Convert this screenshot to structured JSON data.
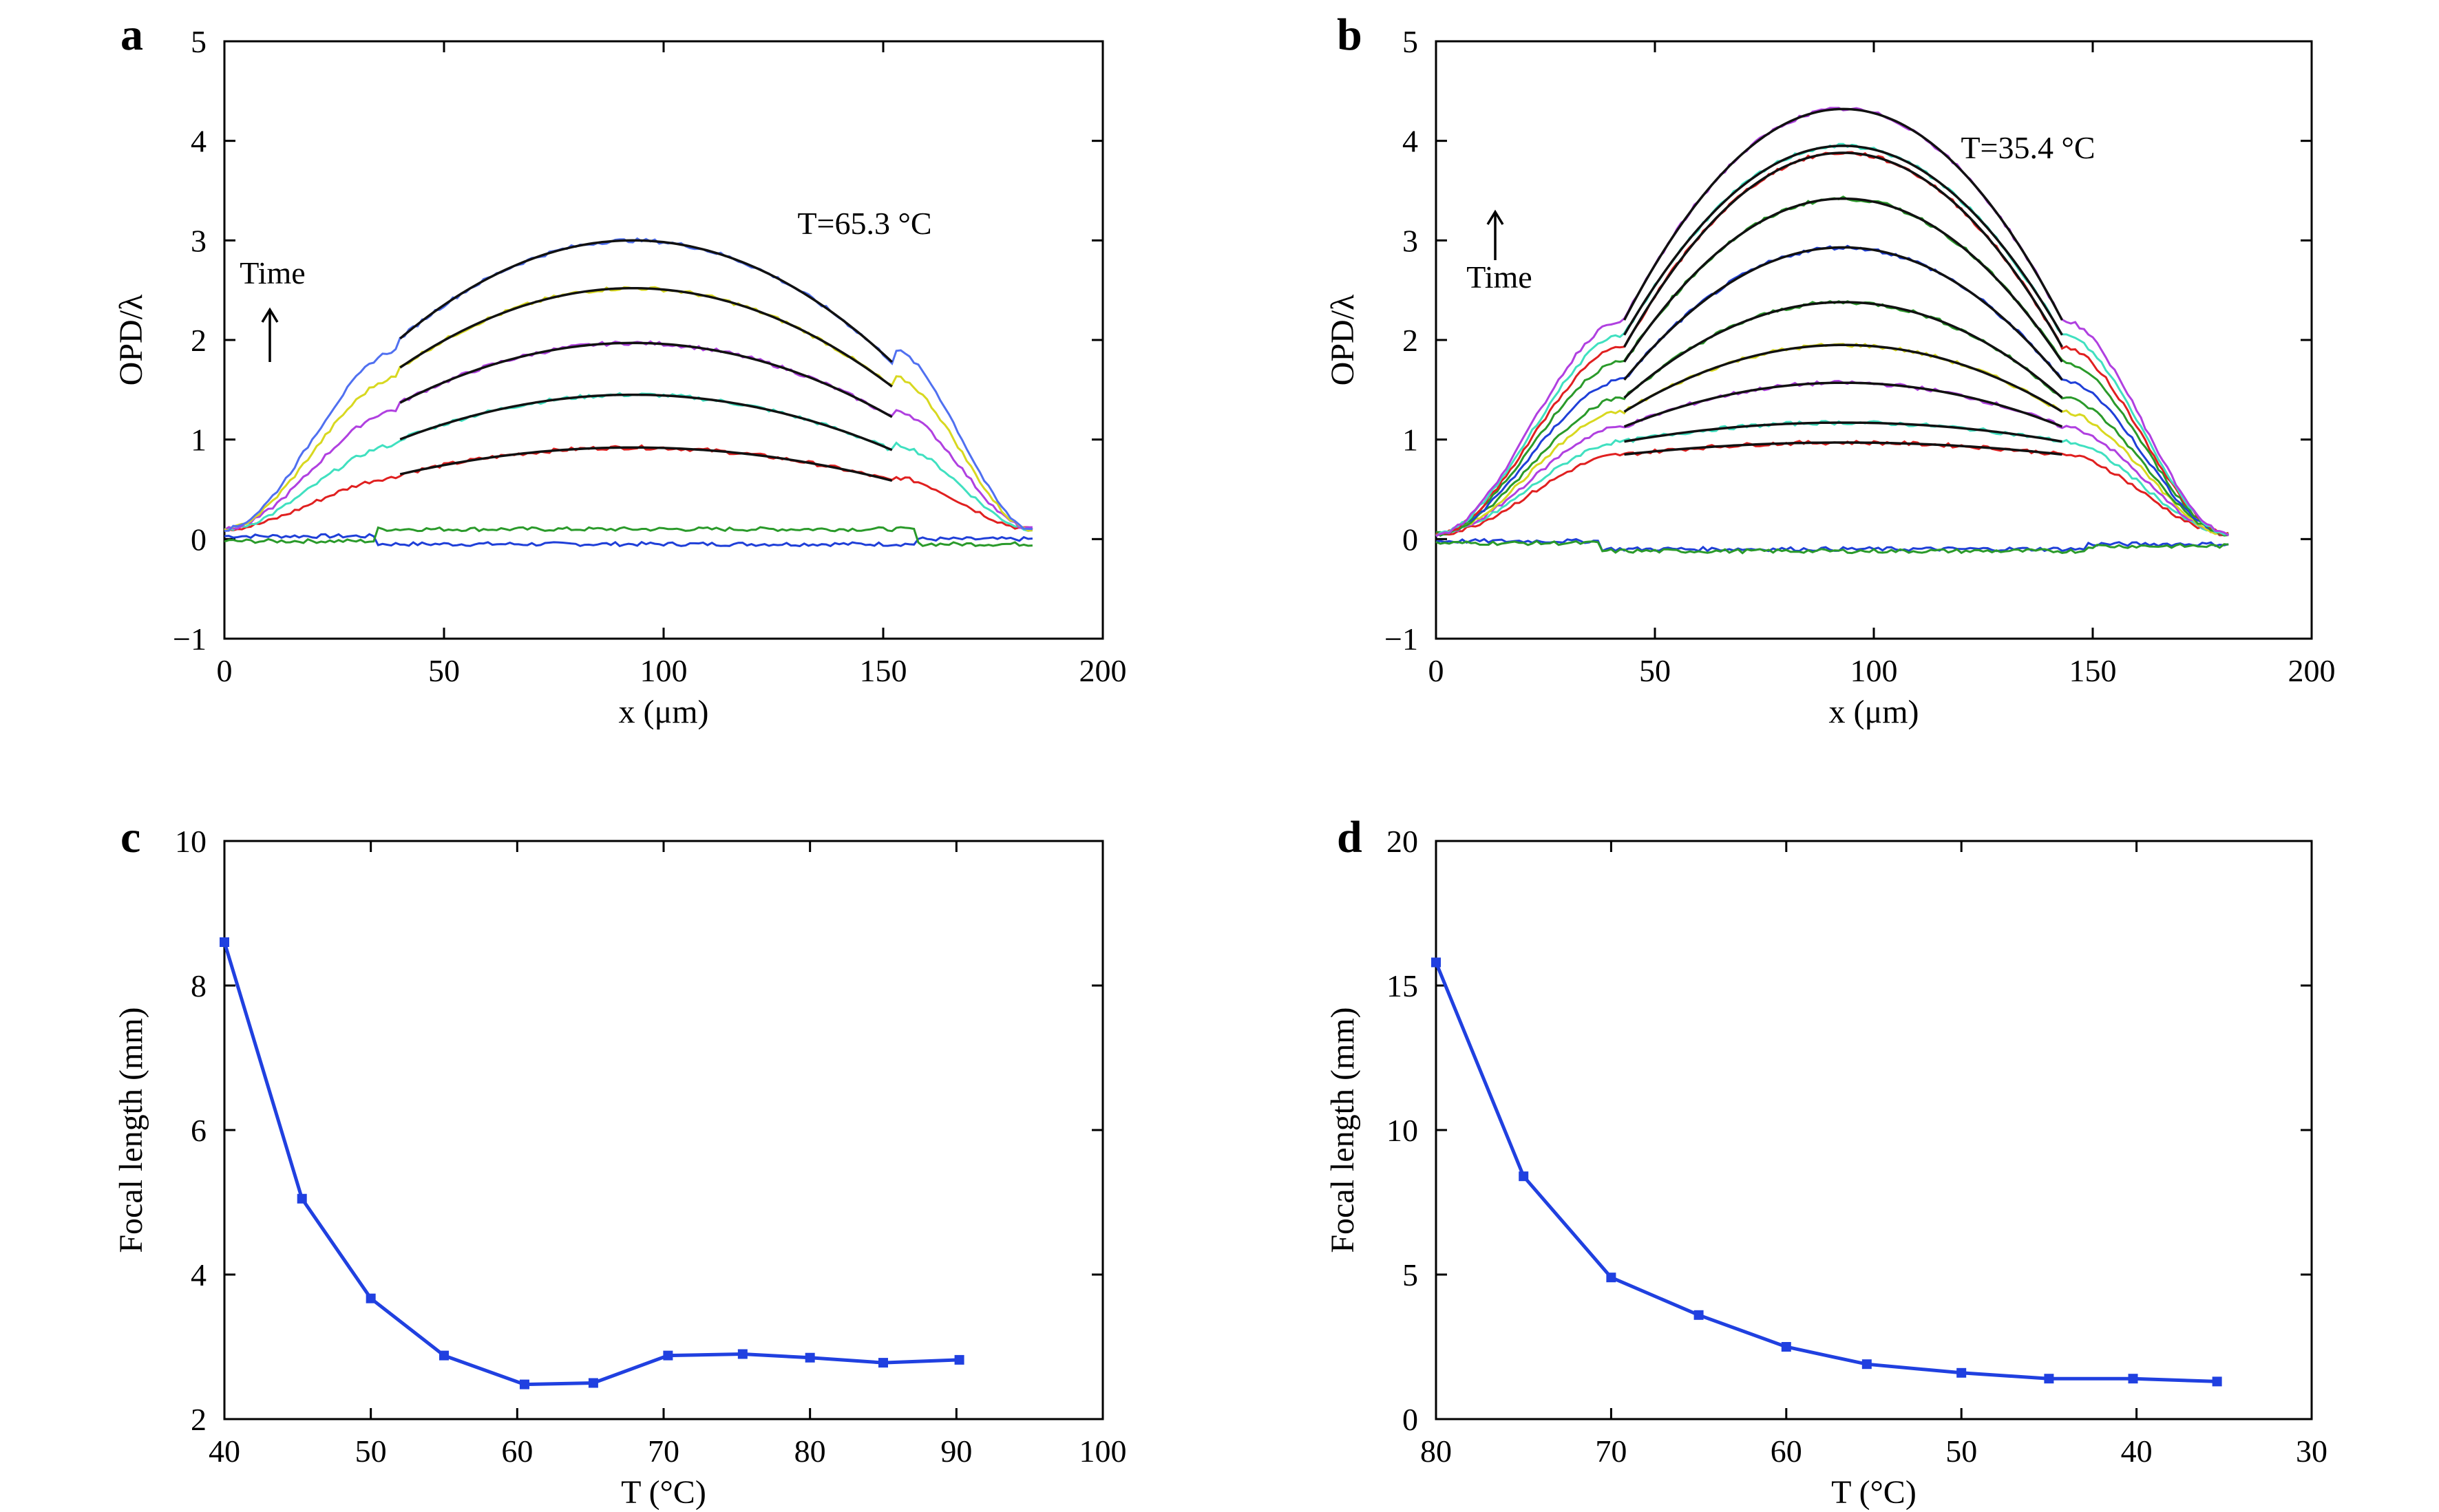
{
  "colors": {
    "blue": "#1f3fd8",
    "green": "#2a9a2a",
    "red": "#e02020",
    "cyan": "#40e0c0",
    "purple": "#b040e0",
    "yellow": "#d8d820",
    "black": "#111111",
    "lightblue": "#5070f0"
  },
  "chart_data": [
    {
      "panel": "a",
      "type": "line",
      "annotation": "T=65.3 °C",
      "time_label": "Time",
      "xlabel": "x (μm)",
      "ylabel": "OPD/λ",
      "xlim": [
        0,
        200
      ],
      "ylim": [
        -1,
        5
      ],
      "xticks": [
        "0",
        "50",
        "100",
        "150",
        "200"
      ],
      "yticks": [
        "−1",
        "0",
        "1",
        "2",
        "3",
        "4",
        "5"
      ],
      "profile": {
        "x_start": 0,
        "x_end": 184,
        "shoulder_left": 40,
        "shoulder_right": 152,
        "center": 93,
        "baseline": 0.1
      },
      "curves": [
        {
          "color": "blue",
          "peak": -0.05,
          "flat": true,
          "offset": -0.05
        },
        {
          "color": "green",
          "peak": 0.1,
          "flat": true,
          "offset": -0.1
        },
        {
          "color": "red",
          "peak": 0.92,
          "edge": 0.62,
          "fit": true
        },
        {
          "color": "cyan",
          "peak": 1.45,
          "edge": 0.95,
          "fit": true
        },
        {
          "color": "purple",
          "peak": 1.97,
          "edge": 1.3,
          "fit": true
        },
        {
          "color": "yellow",
          "peak": 2.52,
          "edge": 1.63,
          "fit": true
        },
        {
          "color": "lightblue",
          "peak": 3.0,
          "edge": 1.9,
          "fit": true
        }
      ]
    },
    {
      "panel": "b",
      "type": "line",
      "annotation": "T=35.4 °C",
      "time_label": "Time",
      "xlabel": "x (μm)",
      "ylabel": "OPD/λ",
      "xlim": [
        0,
        200
      ],
      "ylim": [
        -1,
        5
      ],
      "xticks": [
        "0",
        "50",
        "100",
        "150",
        "200"
      ],
      "yticks": [
        "−1",
        "0",
        "1",
        "2",
        "3",
        "4",
        "5"
      ],
      "profile": {
        "x_start": 0,
        "x_end": 181,
        "shoulder_left": 43,
        "shoulder_right": 143,
        "center": 93,
        "baseline": 0.05
      },
      "curves": [
        {
          "color": "blue",
          "peak": -0.1,
          "flat": true,
          "offset": -0.1
        },
        {
          "color": "green",
          "peak": -0.12,
          "flat": true,
          "offset": -0.12
        },
        {
          "color": "red",
          "peak": 0.97,
          "edge": 0.85,
          "fit": true
        },
        {
          "color": "cyan",
          "peak": 1.17,
          "edge": 0.98,
          "fit": true
        },
        {
          "color": "purple",
          "peak": 1.57,
          "edge": 1.13,
          "fit": true
        },
        {
          "color": "yellow",
          "peak": 1.95,
          "edge": 1.28,
          "fit": true
        },
        {
          "color": "green",
          "peak": 2.38,
          "edge": 1.42,
          "fit": true
        },
        {
          "color": "blue",
          "peak": 2.93,
          "edge": 1.6,
          "fit": true
        },
        {
          "color": "green",
          "peak": 3.42,
          "edge": 1.78,
          "fit": true
        },
        {
          "color": "red",
          "peak": 3.88,
          "edge": 1.93,
          "fit": true
        },
        {
          "color": "cyan",
          "peak": 3.95,
          "edge": 2.05,
          "fit": true
        },
        {
          "color": "purple",
          "peak": 4.32,
          "edge": 2.2,
          "fit": true
        }
      ]
    },
    {
      "panel": "c",
      "type": "line",
      "xlabel": "T (°C)",
      "ylabel": "Focal length (mm)",
      "xlim": [
        40,
        100
      ],
      "ylim": [
        2,
        10
      ],
      "xticks": [
        "40",
        "50",
        "60",
        "70",
        "80",
        "90",
        "100"
      ],
      "yticks": [
        "2",
        "4",
        "6",
        "8",
        "10"
      ],
      "series": [
        {
          "x": [
            40,
            45.3,
            50,
            55,
            60.5,
            65.2,
            70.3,
            75.4,
            80,
            85,
            90.2
          ],
          "y": [
            8.6,
            5.05,
            3.67,
            2.88,
            2.48,
            2.5,
            2.88,
            2.9,
            2.85,
            2.78,
            2.82
          ]
        }
      ]
    },
    {
      "panel": "d",
      "type": "line",
      "xlabel": "T (°C)",
      "ylabel": "Focal length (mm)",
      "xlim": [
        80,
        30
      ],
      "ylim": [
        0,
        20
      ],
      "xticks": [
        "80",
        "70",
        "60",
        "50",
        "40",
        "30"
      ],
      "yticks": [
        "0",
        "5",
        "10",
        "15",
        "20"
      ],
      "series": [
        {
          "x": [
            80,
            75,
            70,
            65,
            60,
            55.4,
            50,
            45,
            40.2,
            35.4
          ],
          "y": [
            15.8,
            8.4,
            4.9,
            3.6,
            2.5,
            1.9,
            1.6,
            1.4,
            1.4,
            1.3
          ]
        }
      ]
    }
  ]
}
